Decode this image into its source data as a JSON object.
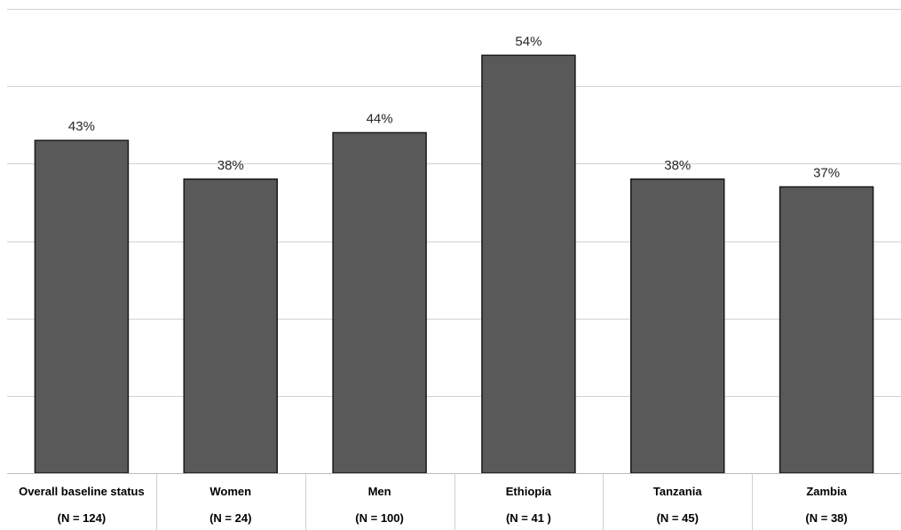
{
  "chart_data": {
    "type": "bar",
    "categories": [
      {
        "line1": "Overall baseline status",
        "line2": "(N = 124)"
      },
      {
        "line1": "Women",
        "line2": "(N = 24)"
      },
      {
        "line1": "Men",
        "line2": "(N = 100)"
      },
      {
        "line1": "Ethiopia",
        "line2": "(N = 41 )"
      },
      {
        "line1": "Tanzania",
        "line2": "(N = 45)"
      },
      {
        "line1": "Zambia",
        "line2": "(N = 38)"
      }
    ],
    "values": [
      43,
      38,
      44,
      54,
      38,
      37
    ],
    "data_labels": [
      "43%",
      "38%",
      "44%",
      "54%",
      "38%",
      "37%"
    ],
    "ylim": [
      0,
      60
    ],
    "grid": true,
    "bar_color": "#595959",
    "bar_edge_color": "#1a1a1a",
    "grid_color": "#d2d2d2"
  }
}
